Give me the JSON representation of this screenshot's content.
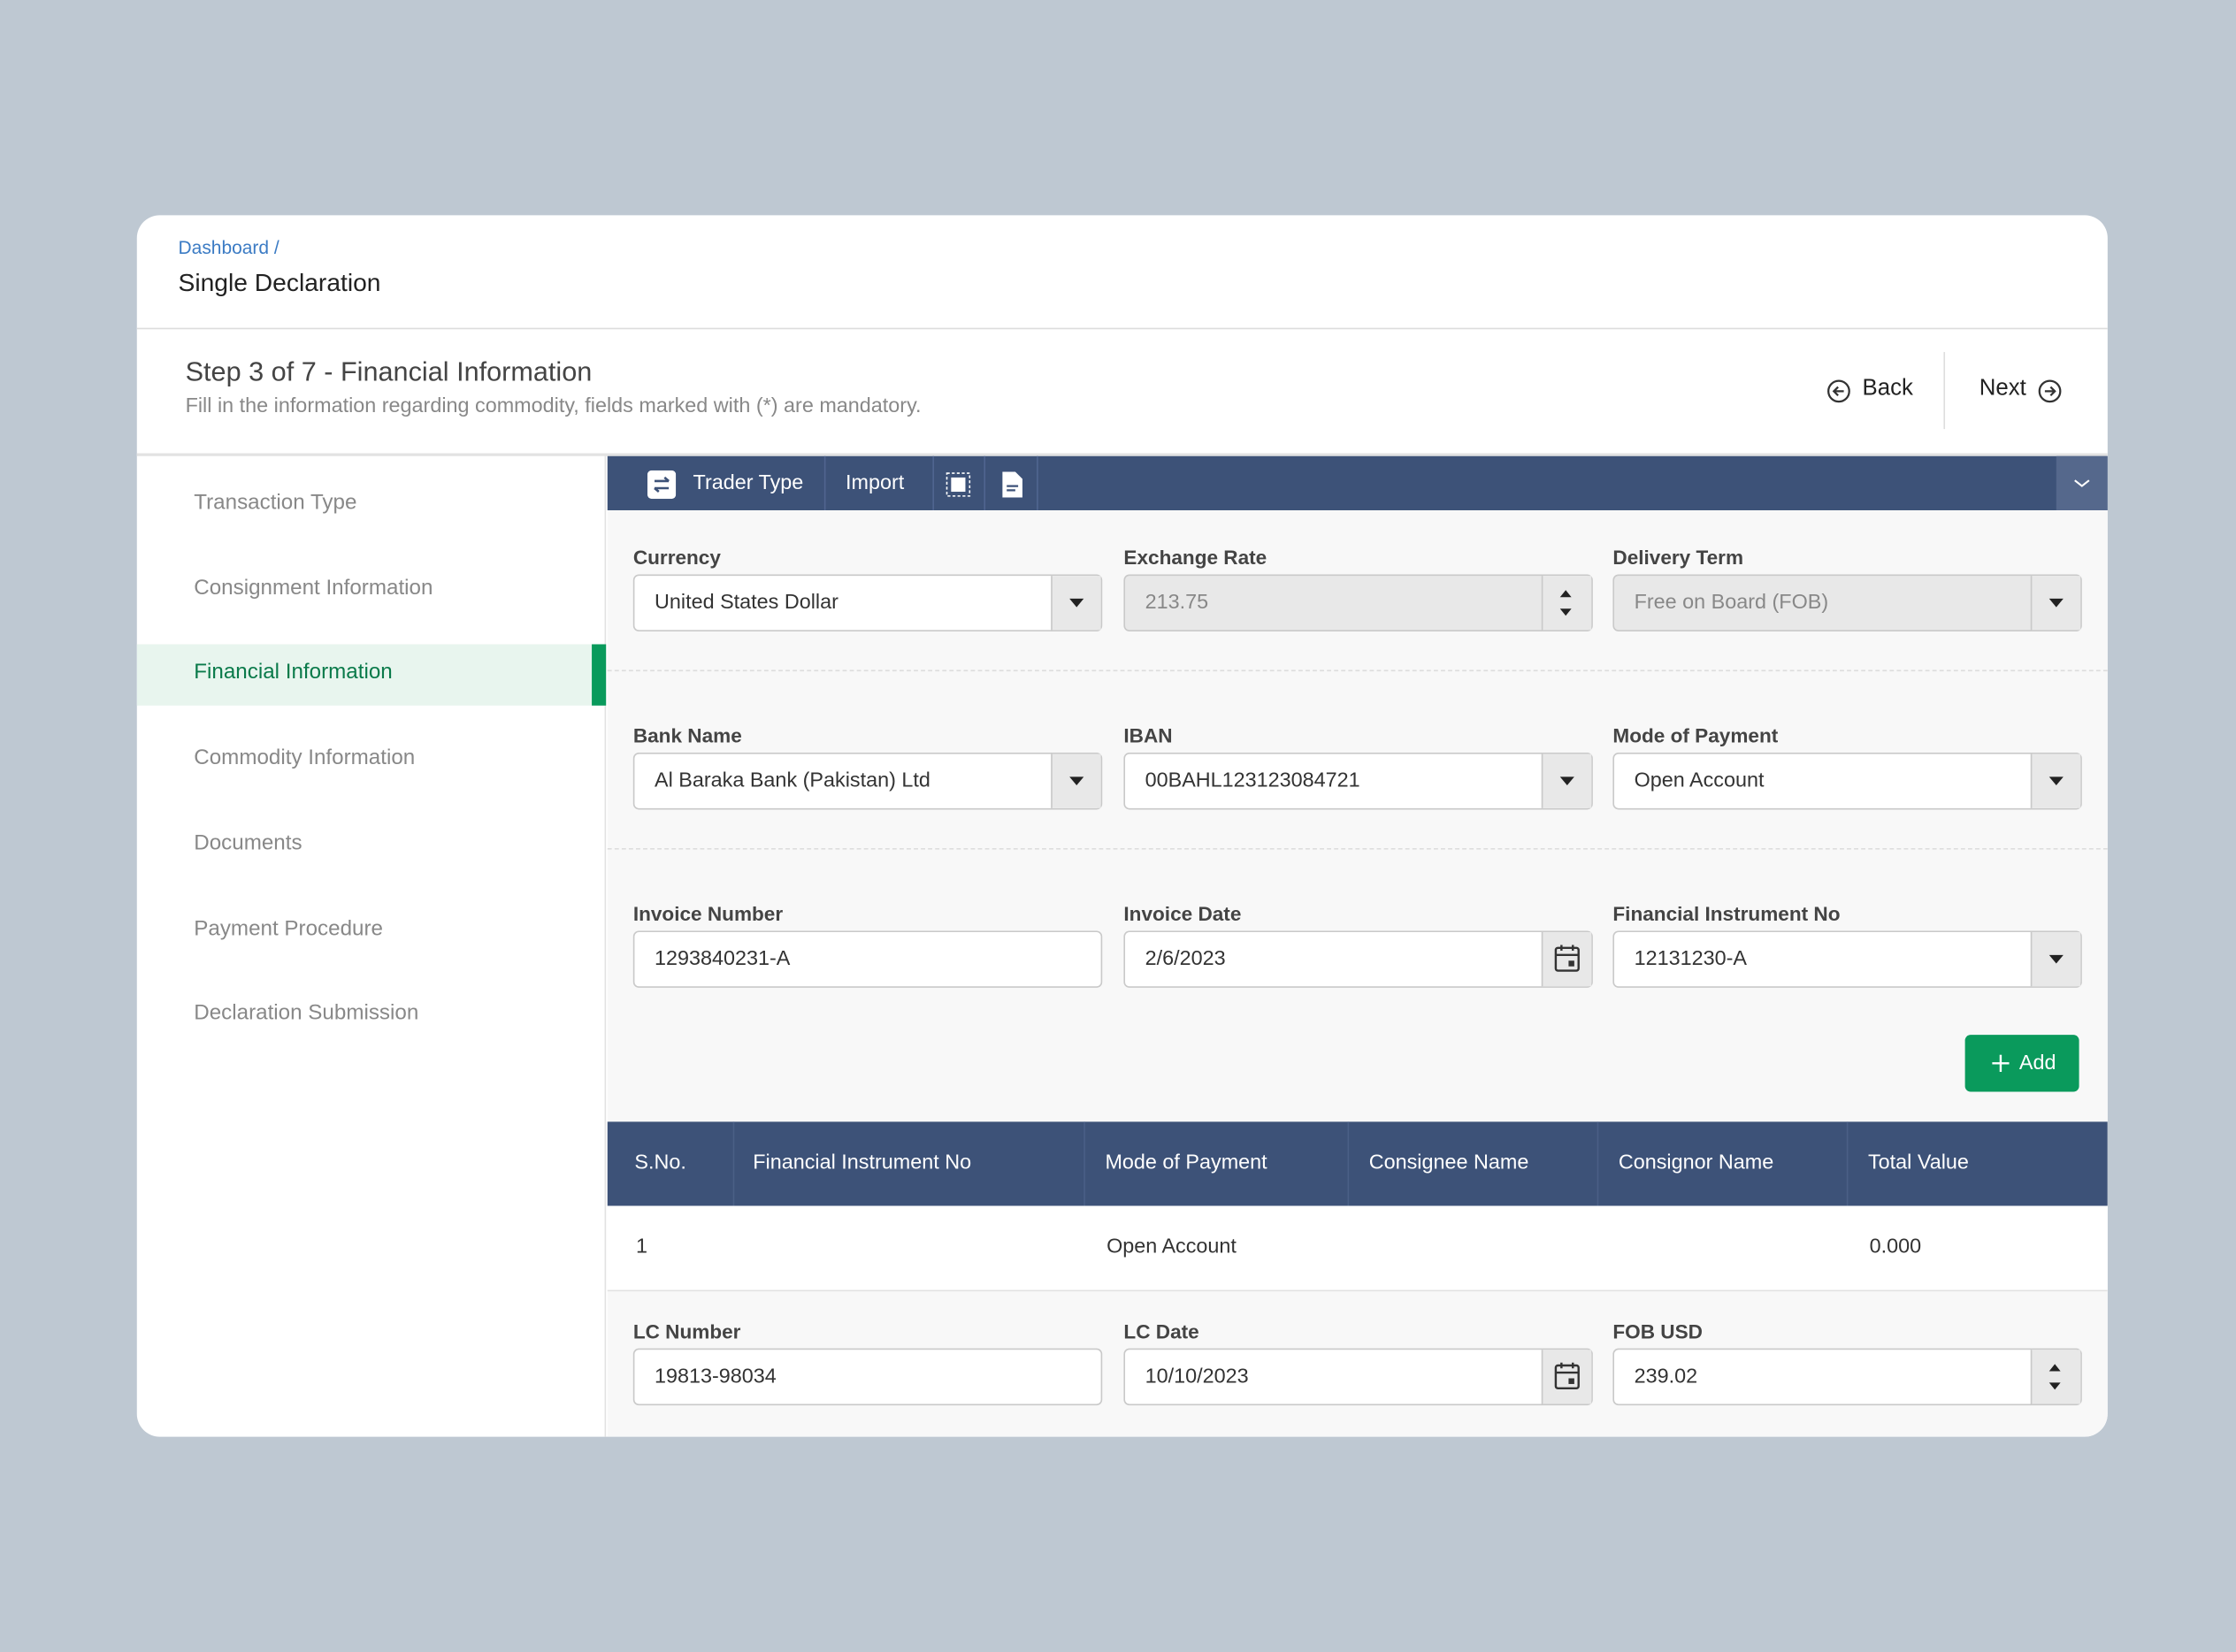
{
  "breadcrumb": {
    "parent": "Dashboard /",
    "current": "Single Declaration"
  },
  "step": {
    "title": "Step 3 of 7 - Financial Information",
    "subtitle": "Fill in the information regarding commodity, fields marked with (*) are mandatory."
  },
  "nav": {
    "back": "Back",
    "next": "Next"
  },
  "sidebar": {
    "items": [
      "Transaction Type",
      "Consignment Information",
      "Financial Information",
      "Commodity Information",
      "Documents",
      "Payment Procedure",
      "Declaration Submission"
    ]
  },
  "toolbar": {
    "trader_type": "Trader Type",
    "import": "Import"
  },
  "fields": [
    {
      "label": "Currency",
      "value": "United States Dollar"
    },
    {
      "label": "Exchange Rate",
      "value": "213.75"
    },
    {
      "label": "Delivery Term",
      "value": "Free on Board (FOB)"
    },
    {
      "label": "Bank Name",
      "value": "Al Baraka Bank (Pakistan) Ltd"
    },
    {
      "label": "IBAN",
      "value": "00BAHL123123084721"
    },
    {
      "label": "Mode of Payment",
      "value": "Open Account"
    },
    {
      "label": "Invoice Number",
      "value": "1293840231-A"
    },
    {
      "label": "Invoice Date",
      "value": "2/6/2023"
    },
    {
      "label": "Financial Instrument No",
      "value": "12131230-A"
    },
    {
      "label": "LC Number",
      "value": "19813-98034"
    },
    {
      "label": "LC Date",
      "value": "10/10/2023"
    },
    {
      "label": "FOB USD",
      "value": "239.02"
    }
  ],
  "add_button": "Add",
  "table": {
    "headers": [
      "S.No.",
      "Financial Instrument No",
      "Mode of Payment",
      "Consignee Name",
      "Consignor Name",
      "Total Value"
    ],
    "rows": [
      [
        "1",
        null,
        "Open Account",
        null,
        null,
        "0.000"
      ]
    ]
  }
}
